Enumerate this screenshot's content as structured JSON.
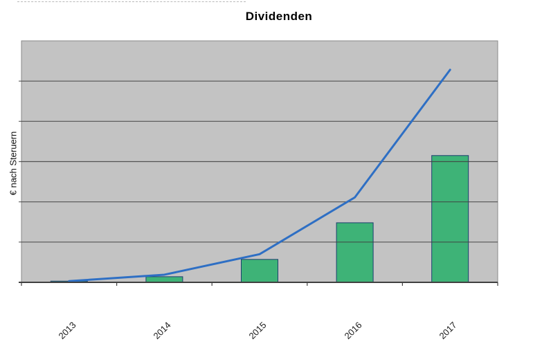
{
  "chart": {
    "title": "Dividenden",
    "ylabel": "€ nach Steruern"
  },
  "chart_data": {
    "type": "combo",
    "title": "Dividenden",
    "xlabel": "",
    "ylabel": "€ nach Steruern",
    "categories": [
      "2013",
      "2014",
      "2015",
      "2016",
      "2017"
    ],
    "series": [
      {
        "type": "bar",
        "values": [
          0.03,
          0.14,
          0.57,
          1.48,
          3.15
        ]
      },
      {
        "type": "line",
        "values": [
          0.03,
          0.19,
          0.7,
          2.11,
          5.28
        ]
      }
    ],
    "ylim": [
      0,
      6
    ],
    "yticklabels": "none",
    "gridlines": {
      "horizontal": true,
      "count": 5
    },
    "legend": "none",
    "colors": {
      "bar_fill": "#3eb377",
      "bar_border": "#1c3d6e",
      "line": "#2e6fc4",
      "plot_bg": "#c3c3c3",
      "plot_border": "#8a8a8a",
      "gridline": "#404040",
      "axis": "#404040"
    }
  }
}
